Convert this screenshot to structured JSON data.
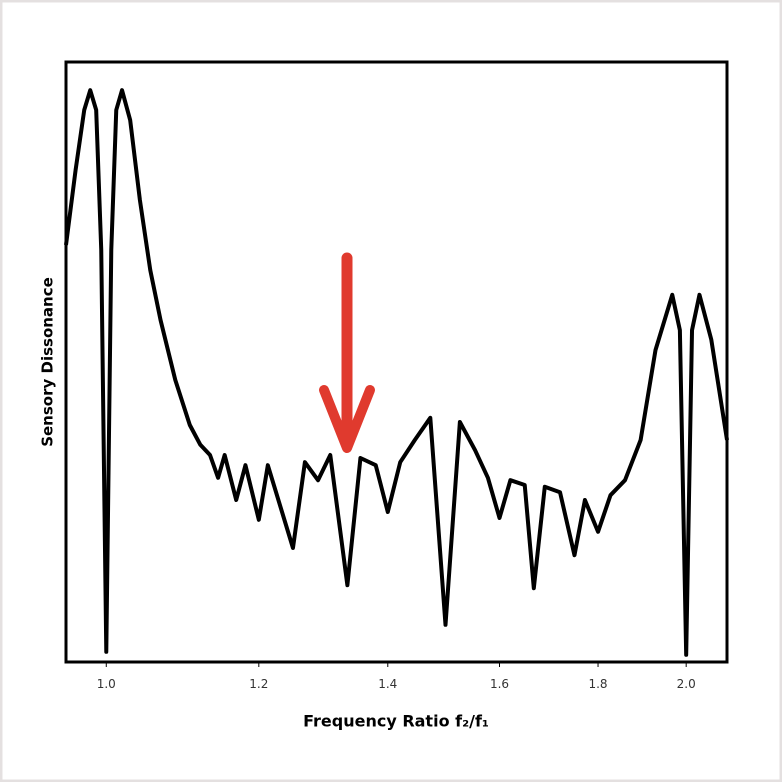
{
  "chart_data": {
    "type": "line",
    "xlabel": "Frequency Ratio f₂/f₁",
    "ylabel": "Sensory Dissonance",
    "xscale": "log",
    "xlim": [
      0.953,
      2.1
    ],
    "ylim": [
      0,
      1
    ],
    "xticks": [
      {
        "value": 1,
        "label": "1.0"
      },
      1.2,
      1.4,
      1.6,
      1.8,
      {
        "value": 2,
        "label": "2.0"
      }
    ],
    "color": "#000000",
    "x": [
      0.953,
      0.964,
      0.974,
      0.981,
      0.988,
      0.994,
      1.0,
      1.006,
      1.012,
      1.019,
      1.029,
      1.041,
      1.054,
      1.067,
      1.086,
      1.105,
      1.119,
      1.132,
      1.143,
      1.152,
      1.168,
      1.181,
      1.2,
      1.213,
      1.25,
      1.268,
      1.288,
      1.307,
      1.334,
      1.355,
      1.38,
      1.4,
      1.421,
      1.446,
      1.473,
      1.5,
      1.526,
      1.554,
      1.578,
      1.6,
      1.621,
      1.649,
      1.667,
      1.689,
      1.72,
      1.75,
      1.772,
      1.8,
      1.827,
      1.859,
      1.894,
      1.928,
      1.967,
      1.985,
      2.0,
      2.014,
      2.032,
      2.061,
      2.1
    ],
    "values": [
      0.695,
      0.82,
      0.92,
      0.953,
      0.92,
      0.687,
      0.017,
      0.687,
      0.92,
      0.953,
      0.903,
      0.77,
      0.653,
      0.57,
      0.47,
      0.395,
      0.362,
      0.345,
      0.307,
      0.345,
      0.27,
      0.328,
      0.237,
      0.328,
      0.19,
      0.333,
      0.303,
      0.345,
      0.128,
      0.34,
      0.328,
      0.25,
      0.333,
      0.37,
      0.407,
      0.062,
      0.4,
      0.353,
      0.307,
      0.24,
      0.303,
      0.295,
      0.123,
      0.292,
      0.283,
      0.178,
      0.27,
      0.217,
      0.278,
      0.303,
      0.37,
      0.52,
      0.612,
      0.553,
      0.012,
      0.553,
      0.612,
      0.537,
      0.37
    ]
  }
}
